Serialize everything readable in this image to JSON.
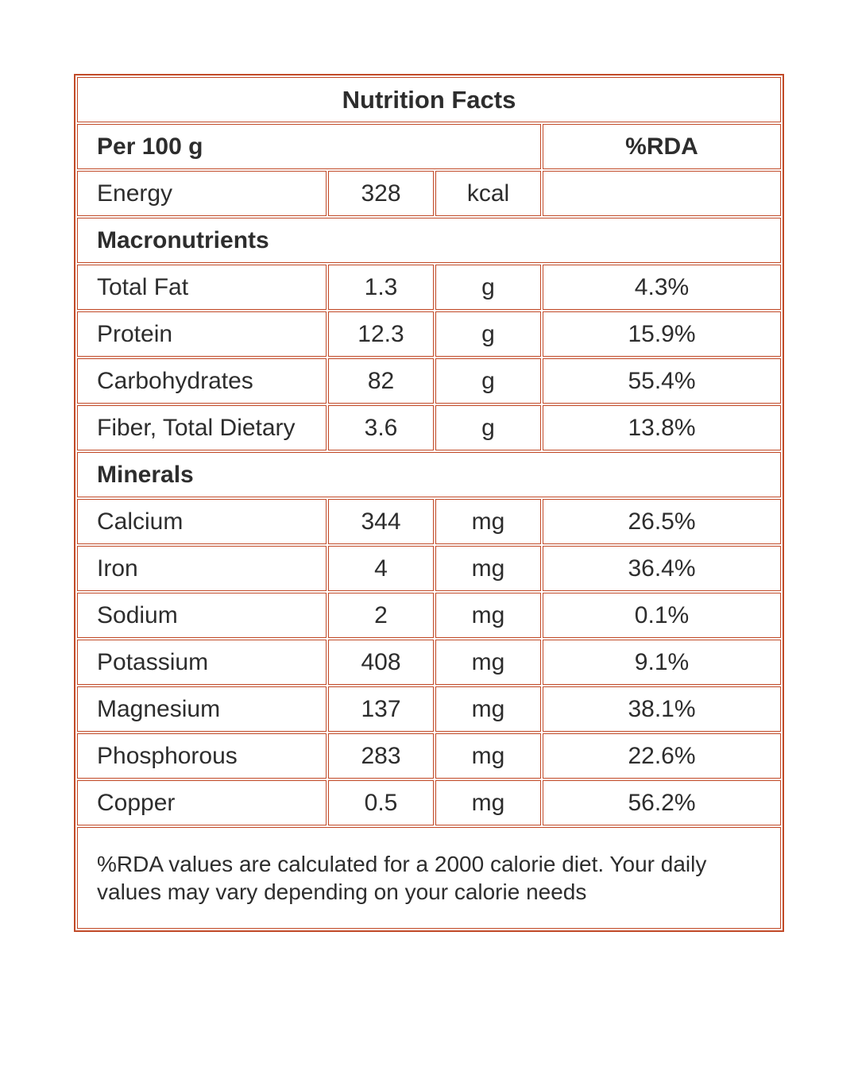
{
  "colors": {
    "border": "#c14a28",
    "text": "#2d2d2d",
    "background": "#ffffff"
  },
  "table": {
    "title": "Nutrition Facts",
    "column_header": {
      "serving": "Per 100 g",
      "rda": "%RDA"
    },
    "energy": {
      "label": "Energy",
      "value": "328",
      "unit": "kcal",
      "rda": ""
    },
    "sections": [
      {
        "name": "Macronutrients",
        "rows": [
          {
            "label": "Total Fat",
            "value": "1.3",
            "unit": "g",
            "rda": "4.3%"
          },
          {
            "label": "Protein",
            "value": "12.3",
            "unit": "g",
            "rda": "15.9%"
          },
          {
            "label": "Carbohydrates",
            "value": "82",
            "unit": "g",
            "rda": "55.4%"
          },
          {
            "label": "Fiber, Total Dietary",
            "value": "3.6",
            "unit": "g",
            "rda": "13.8%"
          }
        ]
      },
      {
        "name": "Minerals",
        "rows": [
          {
            "label": "Calcium",
            "value": "344",
            "unit": "mg",
            "rda": "26.5%"
          },
          {
            "label": "Iron",
            "value": "4",
            "unit": "mg",
            "rda": "36.4%"
          },
          {
            "label": "Sodium",
            "value": "2",
            "unit": "mg",
            "rda": "0.1%"
          },
          {
            "label": "Potassium",
            "value": "408",
            "unit": "mg",
            "rda": "9.1%"
          },
          {
            "label": "Magnesium",
            "value": "137",
            "unit": "mg",
            "rda": "38.1%"
          },
          {
            "label": "Phosphorous",
            "value": "283",
            "unit": "mg",
            "rda": "22.6%"
          },
          {
            "label": "Copper",
            "value": "0.5",
            "unit": "mg",
            "rda": "56.2%"
          }
        ]
      }
    ],
    "footnote": "%RDA values are calculated for a 2000 calorie diet. Your daily values may vary depending on your calorie needs"
  }
}
